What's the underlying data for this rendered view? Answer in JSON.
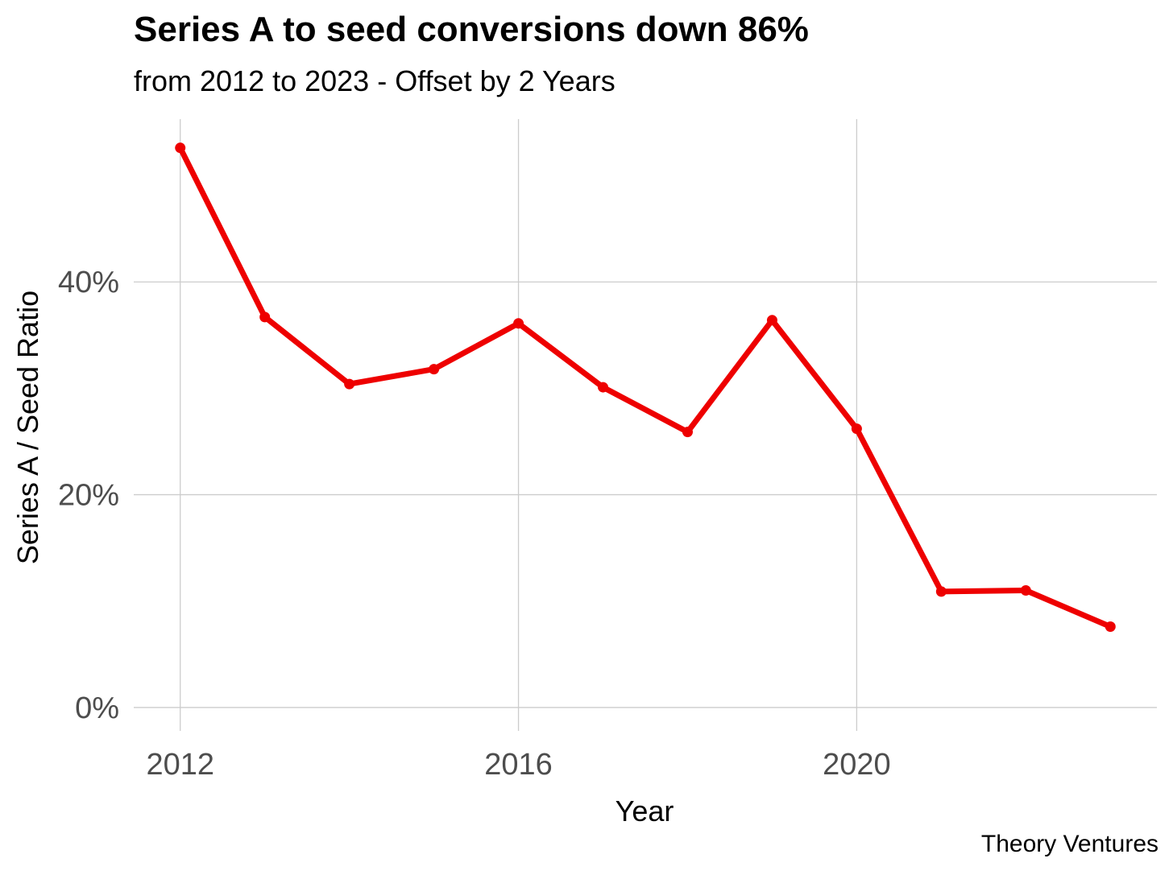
{
  "chart_data": {
    "type": "line",
    "title": "Series A to seed conversions down 86%",
    "subtitle": "from 2012 to 2023 - Offset by 2 Years",
    "caption": "Theory Ventures",
    "xlabel": "Year",
    "ylabel": "Series A / Seed Ratio",
    "x": [
      2012,
      2013,
      2014,
      2015,
      2016,
      2017,
      2018,
      2019,
      2020,
      2021,
      2022,
      2023
    ],
    "series": [
      {
        "values": [
          52.6,
          36.7,
          30.4,
          31.8,
          36.1,
          30.1,
          25.9,
          36.4,
          26.2,
          10.9,
          11.0,
          7.6
        ],
        "color": "#ee0000"
      }
    ],
    "xlim": [
      2011.45,
      2023.55
    ],
    "ylim": [
      -2.2,
      55.3
    ],
    "xticks": [
      2012,
      2016,
      2020
    ],
    "xtick_labels": [
      "2012",
      "2016",
      "2020"
    ],
    "yticks": [
      0,
      20,
      40
    ],
    "ytick_labels": [
      "0%",
      "20%",
      "40%"
    ],
    "grid": "major",
    "grid_color": "#cccccc",
    "legend": "none"
  }
}
